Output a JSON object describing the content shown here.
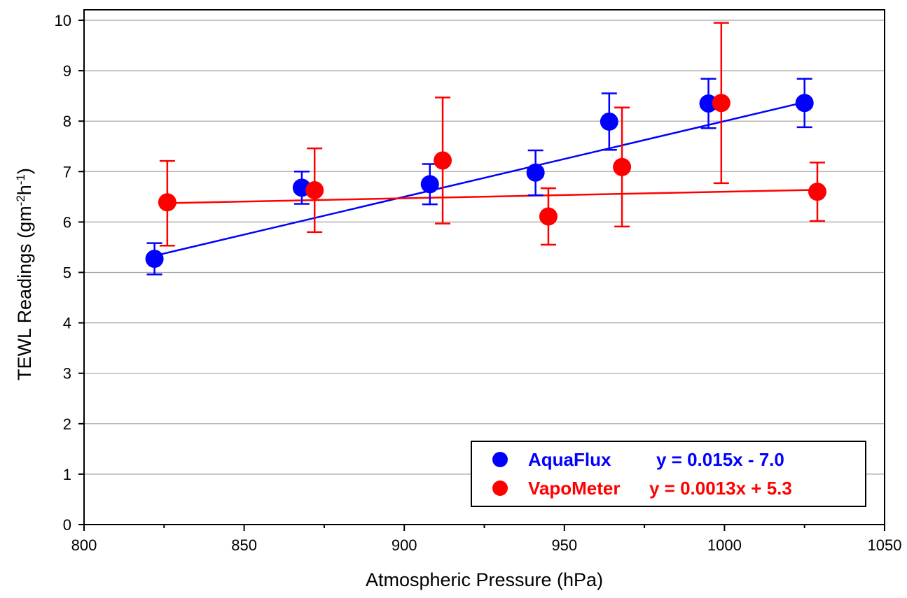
{
  "chart_data": {
    "type": "scatter",
    "title": "",
    "xlabel": "Atmospheric Pressure (hPa)",
    "ylabel": {
      "main": "TEWL Readings (gm",
      "sup1": "-2",
      "mid": "h",
      "sup2": "-1",
      "end": ")"
    },
    "xlim": [
      800,
      1050
    ],
    "ylim": [
      0,
      10
    ],
    "xticks": [
      "800",
      "850",
      "900",
      "950",
      "1000",
      "1050"
    ],
    "yticks": [
      "0",
      "1",
      "2",
      "3",
      "4",
      "5",
      "6",
      "7",
      "8",
      "9",
      "10"
    ],
    "grid": "horizontal",
    "legend_position": "bottom-right",
    "series": [
      {
        "name": "AquaFlux",
        "equation": "y = 0.015x - 7.0",
        "color": "#0000ff",
        "points": [
          {
            "x": 822,
            "y": 5.27,
            "err_low": 4.96,
            "err_high": 5.58
          },
          {
            "x": 868,
            "y": 6.68,
            "err_low": 6.36,
            "err_high": 7.0
          },
          {
            "x": 908,
            "y": 6.75,
            "err_low": 6.35,
            "err_high": 7.15
          },
          {
            "x": 941,
            "y": 6.98,
            "err_low": 6.53,
            "err_high": 7.42
          },
          {
            "x": 964,
            "y": 7.99,
            "err_low": 7.43,
            "err_high": 8.55
          },
          {
            "x": 995,
            "y": 8.35,
            "err_low": 7.86,
            "err_high": 8.84
          },
          {
            "x": 1025,
            "y": 8.36,
            "err_low": 7.88,
            "err_high": 8.84
          }
        ],
        "fit_range": [
          824,
          1025
        ]
      },
      {
        "name": "VapoMeter",
        "equation": "y = 0.0013x + 5.3",
        "color": "#ff0000",
        "points": [
          {
            "x": 826,
            "y": 6.39,
            "err_low": 5.53,
            "err_high": 7.21
          },
          {
            "x": 872,
            "y": 6.63,
            "err_low": 5.8,
            "err_high": 7.46
          },
          {
            "x": 912,
            "y": 7.22,
            "err_low": 5.97,
            "err_high": 8.47
          },
          {
            "x": 945,
            "y": 6.11,
            "err_low": 5.55,
            "err_high": 6.67
          },
          {
            "x": 968,
            "y": 7.09,
            "err_low": 5.91,
            "err_high": 8.27
          },
          {
            "x": 999,
            "y": 8.36,
            "err_low": 6.77,
            "err_high": 9.95
          },
          {
            "x": 1029,
            "y": 6.6,
            "err_low": 6.02,
            "err_high": 7.18
          }
        ],
        "fit_range": [
          826,
          1029
        ]
      }
    ]
  }
}
